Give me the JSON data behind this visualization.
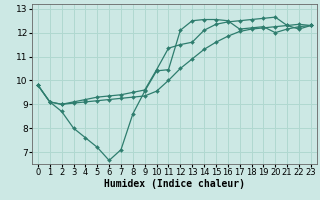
{
  "background_color": "#cce8e4",
  "grid_color": "#b0d8d0",
  "line_color": "#2e7d6e",
  "xlim": [
    -0.5,
    23.5
  ],
  "ylim": [
    6.5,
    13.2
  ],
  "xticks": [
    0,
    1,
    2,
    3,
    4,
    5,
    6,
    7,
    8,
    9,
    10,
    11,
    12,
    13,
    14,
    15,
    16,
    17,
    18,
    19,
    20,
    21,
    22,
    23
  ],
  "yticks": [
    7,
    8,
    9,
    10,
    11,
    12,
    13
  ],
  "xlabel": "Humidex (Indice chaleur)",
  "series1_x": [
    0,
    1,
    2,
    3,
    4,
    5,
    6,
    7,
    8,
    9,
    10,
    11,
    12,
    13,
    14,
    15,
    16,
    17,
    18,
    19,
    20,
    21,
    22,
    23
  ],
  "series1_y": [
    9.8,
    9.1,
    8.7,
    8.0,
    7.6,
    7.2,
    6.65,
    7.1,
    8.6,
    9.55,
    10.4,
    10.45,
    12.1,
    12.5,
    12.55,
    12.55,
    12.5,
    12.15,
    12.2,
    12.25,
    12.0,
    12.15,
    12.25,
    12.3
  ],
  "series2_x": [
    0,
    1,
    2,
    3,
    4,
    5,
    6,
    7,
    8,
    9,
    10,
    11,
    12,
    13,
    14,
    15,
    16,
    17,
    18,
    19,
    20,
    21,
    22,
    23
  ],
  "series2_y": [
    9.8,
    9.1,
    9.0,
    9.1,
    9.2,
    9.3,
    9.35,
    9.4,
    9.5,
    9.6,
    10.45,
    11.35,
    11.5,
    11.6,
    12.1,
    12.35,
    12.45,
    12.5,
    12.55,
    12.6,
    12.65,
    12.3,
    12.15,
    12.3
  ],
  "series3_x": [
    0,
    1,
    2,
    3,
    4,
    5,
    6,
    7,
    8,
    9,
    10,
    11,
    12,
    13,
    14,
    15,
    16,
    17,
    18,
    19,
    20,
    21,
    22,
    23
  ],
  "series3_y": [
    9.8,
    9.1,
    9.0,
    9.05,
    9.1,
    9.15,
    9.2,
    9.25,
    9.3,
    9.35,
    9.55,
    10.0,
    10.5,
    10.9,
    11.3,
    11.6,
    11.85,
    12.05,
    12.15,
    12.2,
    12.25,
    12.3,
    12.35,
    12.3
  ],
  "xlabel_fontsize": 7,
  "tick_fontsize": 6,
  "ytick_fontsize": 6.5,
  "marker_size": 2.0,
  "line_width": 0.9
}
